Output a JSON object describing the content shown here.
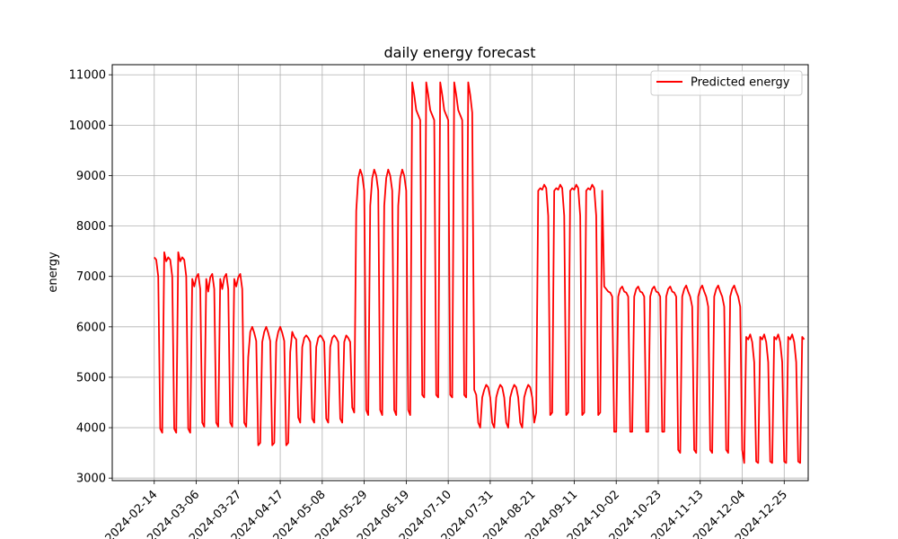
{
  "chart_data": {
    "type": "line",
    "title": "daily energy forecast",
    "xlabel": "",
    "ylabel": "energy",
    "xlim": [
      "2024-01-24",
      "2025-01-06"
    ],
    "ylim": [
      2950,
      11200
    ],
    "grid": true,
    "legend_placement": "top-right",
    "x_ticks": [
      "2024-02-14",
      "2024-03-06",
      "2024-03-27",
      "2024-04-17",
      "2024-05-08",
      "2024-05-29",
      "2024-06-19",
      "2024-07-10",
      "2024-07-31",
      "2024-08-21",
      "2024-09-11",
      "2024-10-02",
      "2024-10-23",
      "2024-11-13",
      "2024-12-04",
      "2024-12-25"
    ],
    "y_ticks": [
      3000,
      4000,
      5000,
      6000,
      7000,
      8000,
      9000,
      10000,
      11000
    ],
    "series": [
      {
        "name": "Predicted energy",
        "color": "#ff0000",
        "start_date": "2024-02-14",
        "values": [
          7380,
          7330,
          7000,
          3980,
          3900,
          7480,
          7300,
          7380,
          7330,
          7000,
          3980,
          3900,
          7480,
          7300,
          7380,
          7330,
          7000,
          3980,
          3900,
          6950,
          6800,
          6980,
          7050,
          6750,
          4100,
          4020,
          6950,
          6700,
          6980,
          7050,
          6750,
          4100,
          4020,
          6950,
          6750,
          6980,
          7050,
          6750,
          4100,
          4020,
          6950,
          6800,
          6980,
          7050,
          6750,
          4100,
          4020,
          5400,
          5900,
          6000,
          5880,
          5720,
          3650,
          3700,
          5700,
          5900,
          6000,
          5880,
          5720,
          3650,
          3700,
          5700,
          5900,
          6000,
          5880,
          5720,
          3650,
          3700,
          5500,
          5900,
          5800,
          5750,
          4200,
          4100,
          5600,
          5780,
          5830,
          5780,
          5700,
          4180,
          4100,
          5600,
          5780,
          5830,
          5780,
          5700,
          4180,
          4100,
          5600,
          5780,
          5830,
          5780,
          5700,
          4180,
          4100,
          5700,
          5830,
          5780,
          5700,
          4400,
          4300,
          8300,
          8950,
          9120,
          9000,
          8700,
          4350,
          4250,
          8400,
          8950,
          9120,
          9000,
          8700,
          4350,
          4250,
          8400,
          8950,
          9120,
          9000,
          8700,
          4350,
          4250,
          8400,
          8950,
          9120,
          9000,
          8700,
          4350,
          4250,
          10850,
          10600,
          10300,
          10200,
          10100,
          4650,
          4600,
          10850,
          10600,
          10300,
          10200,
          10100,
          4650,
          4600,
          10850,
          10600,
          10300,
          10200,
          10100,
          4650,
          4600,
          10850,
          10600,
          10300,
          10200,
          10100,
          4650,
          4600,
          10850,
          10600,
          10250,
          4750,
          4650,
          4100,
          4000,
          4600,
          4750,
          4850,
          4800,
          4600,
          4100,
          4000,
          4600,
          4750,
          4850,
          4800,
          4600,
          4100,
          4000,
          4600,
          4750,
          4850,
          4800,
          4600,
          4100,
          4000,
          4600,
          4750,
          4850,
          4800,
          4600,
          4100,
          4300,
          8700,
          8750,
          8720,
          8820,
          8750,
          8200,
          4250,
          4300,
          8700,
          8750,
          8720,
          8820,
          8750,
          8200,
          4250,
          4300,
          8700,
          8750,
          8720,
          8820,
          8750,
          8200,
          4250,
          4300,
          8700,
          8750,
          8720,
          8820,
          8750,
          8200,
          4250,
          4300,
          8700,
          6800,
          6750,
          6700,
          6680,
          6600,
          3920,
          3920,
          6600,
          6750,
          6800,
          6700,
          6680,
          6600,
          3920,
          3920,
          6600,
          6750,
          6800,
          6700,
          6680,
          6600,
          3920,
          3920,
          6600,
          6750,
          6800,
          6700,
          6680,
          6600,
          3920,
          3920,
          6600,
          6750,
          6800,
          6700,
          6680,
          6600,
          3560,
          3500,
          6600,
          6750,
          6820,
          6700,
          6600,
          6400,
          3560,
          3500,
          6600,
          6750,
          6820,
          6700,
          6600,
          6400,
          3560,
          3500,
          6600,
          6750,
          6820,
          6700,
          6600,
          6400,
          3560,
          3500,
          6600,
          6750,
          6820,
          6700,
          6600,
          6400,
          3560,
          3300,
          5800,
          5750,
          5850,
          5700,
          5300,
          3330,
          3300,
          5800,
          5750,
          5850,
          5700,
          5300,
          3330,
          3300,
          5800,
          5750,
          5850,
          5700,
          5300,
          3330,
          3300,
          5800,
          5750,
          5850,
          5700,
          5300,
          3330,
          3300,
          5800,
          5750
        ]
      }
    ]
  }
}
